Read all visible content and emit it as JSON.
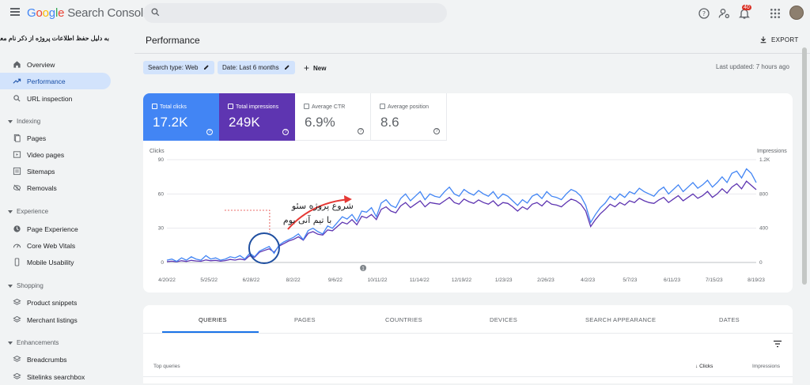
{
  "topbar": {
    "logo_google": [
      "G",
      "o",
      "o",
      "g",
      "l",
      "e"
    ],
    "logo_product": "Search Console",
    "notifications_count": "40"
  },
  "sidebar": {
    "notice": "به دلیل حفظ اطلاعات پروژه از ذکر نام معذوریم :)",
    "items": [
      {
        "label": "Overview",
        "icon": "home-icon"
      },
      {
        "label": "Performance",
        "icon": "trending-up-icon"
      },
      {
        "label": "URL inspection",
        "icon": "search-icon"
      }
    ],
    "indexing": {
      "title": "Indexing",
      "items": [
        {
          "label": "Pages",
          "icon": "pages-icon"
        },
        {
          "label": "Video pages",
          "icon": "video-pages-icon"
        },
        {
          "label": "Sitemaps",
          "icon": "sitemaps-icon"
        },
        {
          "label": "Removals",
          "icon": "removals-icon"
        }
      ]
    },
    "experience": {
      "title": "Experience",
      "items": [
        {
          "label": "Page Experience",
          "icon": "page-experience-icon"
        },
        {
          "label": "Core Web Vitals",
          "icon": "speed-icon"
        },
        {
          "label": "Mobile Usability",
          "icon": "phone-icon"
        }
      ]
    },
    "shopping": {
      "title": "Shopping",
      "items": [
        {
          "label": "Product snippets",
          "icon": "layers-icon"
        },
        {
          "label": "Merchant listings",
          "icon": "layers-icon"
        }
      ]
    },
    "enhancements": {
      "title": "Enhancements",
      "items": [
        {
          "label": "Breadcrumbs",
          "icon": "layers-icon"
        },
        {
          "label": "Sitelinks searchbox",
          "icon": "layers-icon"
        }
      ]
    }
  },
  "main": {
    "title": "Performance",
    "export_label": "EXPORT",
    "filters": {
      "search_type": "Search type: Web",
      "date": "Date: Last 6 months",
      "new_label": "New"
    },
    "last_updated": "Last updated: 7 hours ago",
    "metrics": {
      "clicks_label": "Total clicks",
      "clicks_value": "17.2K",
      "impressions_label": "Total impressions",
      "impressions_value": "249K",
      "ctr_label": "Average CTR",
      "ctr_value": "6.9%",
      "position_label": "Average position",
      "position_value": "8.6"
    },
    "annotation_line1": "شروع پروژه سئو",
    "annotation_line2": "با تیم آنی بوم",
    "annotation_marker": "1",
    "tabs": [
      "QUERIES",
      "PAGES",
      "COUNTRIES",
      "DEVICES",
      "SEARCH APPEARANCE",
      "DATES"
    ],
    "table": {
      "col_query": "Top queries",
      "col_clicks": "Clicks",
      "col_impressions": "Impressions"
    }
  },
  "colors": {
    "clicks": "#4285f4",
    "impressions": "#5e35b1",
    "annotation": "#e53935"
  },
  "chart_data": {
    "type": "line",
    "x_tick_labels": [
      "4/20/22",
      "5/25/22",
      "6/28/22",
      "8/2/22",
      "9/6/22",
      "10/11/22",
      "11/14/22",
      "12/19/22",
      "1/23/23",
      "2/26/23",
      "4/2/23",
      "5/7/23",
      "6/11/23",
      "7/15/23",
      "8/19/23"
    ],
    "ylabel_left": "Clicks",
    "ylabel_right": "Impressions",
    "yticks_left": [
      "90",
      "60",
      "30",
      "0"
    ],
    "yticks_right": [
      "1.2K",
      "800",
      "400",
      "0"
    ],
    "ylim_left": [
      0,
      90
    ],
    "ylim_right": [
      0,
      1200
    ],
    "grid": true,
    "series": [
      {
        "name": "Clicks",
        "values": [
          2,
          3,
          1,
          4,
          2,
          5,
          3,
          2,
          6,
          3,
          4,
          2,
          3,
          5,
          4,
          6,
          3,
          8,
          5,
          10,
          12,
          14,
          8,
          15,
          18,
          20,
          22,
          25,
          20,
          28,
          30,
          27,
          25,
          32,
          30,
          35,
          40,
          38,
          42,
          36,
          45,
          44,
          48,
          40,
          52,
          55,
          50,
          48,
          56,
          60,
          54,
          58,
          62,
          55,
          60,
          58,
          57,
          62,
          66,
          60,
          58,
          64,
          61,
          59,
          63,
          60,
          58,
          62,
          56,
          60,
          58,
          54,
          50,
          55,
          52,
          58,
          60,
          56,
          62,
          58,
          57,
          55,
          60,
          64,
          62,
          58,
          50,
          35,
          42,
          48,
          52,
          58,
          55,
          60,
          57,
          62,
          60,
          65,
          62,
          60,
          58,
          63,
          66,
          60,
          64,
          68,
          62,
          66,
          70,
          65,
          68,
          72,
          66,
          70,
          75,
          70,
          78,
          80,
          74,
          82,
          78,
          70
        ]
      },
      {
        "name": "Impressions",
        "values": [
          10,
          15,
          8,
          20,
          12,
          25,
          18,
          14,
          30,
          20,
          25,
          15,
          22,
          35,
          28,
          40,
          30,
          80,
          60,
          120,
          140,
          160,
          120,
          190,
          220,
          250,
          270,
          300,
          260,
          340,
          360,
          330,
          320,
          380,
          370,
          420,
          470,
          450,
          500,
          440,
          540,
          520,
          560,
          500,
          620,
          650,
          600,
          580,
          660,
          700,
          640,
          680,
          720,
          650,
          700,
          690,
          680,
          720,
          760,
          700,
          680,
          740,
          710,
          690,
          730,
          700,
          680,
          720,
          660,
          700,
          690,
          650,
          600,
          650,
          620,
          680,
          700,
          660,
          720,
          680,
          670,
          650,
          700,
          740,
          720,
          680,
          600,
          420,
          500,
          570,
          620,
          680,
          650,
          700,
          670,
          720,
          700,
          750,
          720,
          700,
          690,
          730,
          760,
          700,
          740,
          780,
          720,
          760,
          800,
          750,
          780,
          830,
          760,
          800,
          860,
          810,
          880,
          920,
          860,
          950,
          900,
          850
        ]
      }
    ]
  }
}
